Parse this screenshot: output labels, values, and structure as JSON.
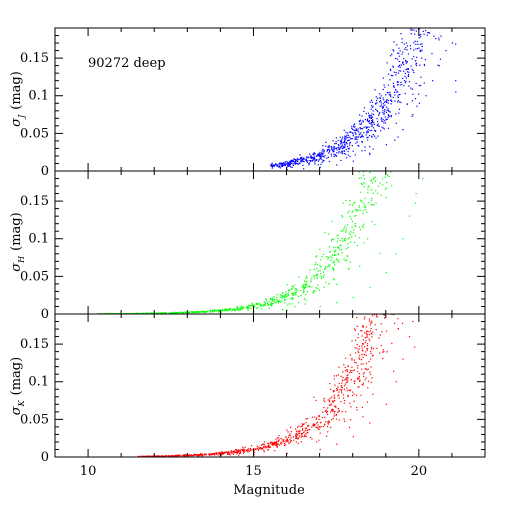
{
  "chart_data": [
    {
      "type": "scatter",
      "annotation": "90272 deep",
      "ylabel_symbol": "σ",
      "ylabel_sub": "J",
      "ylabel_unit": "(mag)",
      "xlim": [
        9,
        22
      ],
      "ylim": [
        0,
        0.19
      ],
      "yticks": [
        "0",
        "0.05",
        "0.1",
        "0.15"
      ],
      "ytick_values": [
        0,
        0.05,
        0.1,
        0.15
      ],
      "color": "#0000ff",
      "series": [
        {
          "curve": {
            "a": 0.0015,
            "m0": 13.5,
            "b": 0.75,
            "mmax": 21.1,
            "mmin": 15.5,
            "x_shift": 0
          },
          "points": [
            [
              16.0,
              0.002
            ],
            [
              16.5,
              0.003
            ],
            [
              17.0,
              0.005
            ],
            [
              17.5,
              0.008
            ],
            [
              18.0,
              0.013
            ],
            [
              18.5,
              0.022
            ],
            [
              19.0,
              0.035
            ],
            [
              19.5,
              0.055
            ],
            [
              19.8,
              0.075
            ],
            [
              20.0,
              0.09
            ],
            [
              20.2,
              0.1
            ],
            [
              20.4,
              0.12
            ],
            [
              20.6,
              0.14
            ],
            [
              20.8,
              0.16
            ],
            [
              21.0,
              0.17
            ]
          ]
        }
      ]
    },
    {
      "type": "scatter",
      "annotation": "",
      "ylabel_symbol": "σ",
      "ylabel_sub": "H",
      "ylabel_unit": "(mag)",
      "xlim": [
        9,
        22
      ],
      "ylim": [
        0,
        0.19
      ],
      "yticks": [
        "0",
        "0.05",
        "0.1",
        "0.15"
      ],
      "ytick_values": [
        0,
        0.05,
        0.1,
        0.15
      ],
      "color": "#00ff00",
      "series": [
        {
          "curve": {
            "a": 0.0009,
            "m0": 12.5,
            "b": 0.82,
            "mmax": 20.3,
            "mmin": 10.3,
            "x_shift": -0.5
          },
          "points": [
            [
              12.0,
              0.001
            ],
            [
              14.0,
              0.002
            ],
            [
              15.0,
              0.003
            ],
            [
              16.0,
              0.005
            ],
            [
              17.0,
              0.01
            ],
            [
              17.5,
              0.015
            ],
            [
              18.0,
              0.022
            ],
            [
              18.5,
              0.035
            ],
            [
              19.0,
              0.055
            ],
            [
              19.3,
              0.08
            ],
            [
              19.5,
              0.1
            ],
            [
              19.7,
              0.13
            ],
            [
              19.9,
              0.16
            ],
            [
              20.1,
              0.18
            ]
          ]
        }
      ]
    },
    {
      "type": "scatter",
      "annotation": "",
      "ylabel_symbol": "σ",
      "ylabel_sub": "K",
      "ylabel_unit": "(mag)",
      "xlim": [
        9,
        22
      ],
      "ylim": [
        0,
        0.19
      ],
      "yticks": [
        "0",
        "0.05",
        "0.1",
        "0.15"
      ],
      "ytick_values": [
        0,
        0.05,
        0.1,
        0.15
      ],
      "xticks": [
        "10",
        "15",
        "20"
      ],
      "xtick_values": [
        10,
        15,
        20
      ],
      "xlabel": "Magnitude",
      "color": "#ff0000",
      "series": [
        {
          "curve": {
            "a": 0.0011,
            "m0": 12.5,
            "b": 0.78,
            "mmax": 20.0,
            "mmin": 11.5,
            "x_shift": -0.4
          },
          "points": [
            [
              12.0,
              0.001
            ],
            [
              14.0,
              0.002
            ],
            [
              15.0,
              0.003
            ],
            [
              16.0,
              0.005
            ],
            [
              17.0,
              0.01
            ],
            [
              17.5,
              0.017
            ],
            [
              18.0,
              0.027
            ],
            [
              18.5,
              0.045
            ],
            [
              19.0,
              0.07
            ],
            [
              19.3,
              0.1
            ],
            [
              19.5,
              0.13
            ],
            [
              19.7,
              0.16
            ],
            [
              19.8,
              0.18
            ]
          ]
        }
      ]
    }
  ]
}
